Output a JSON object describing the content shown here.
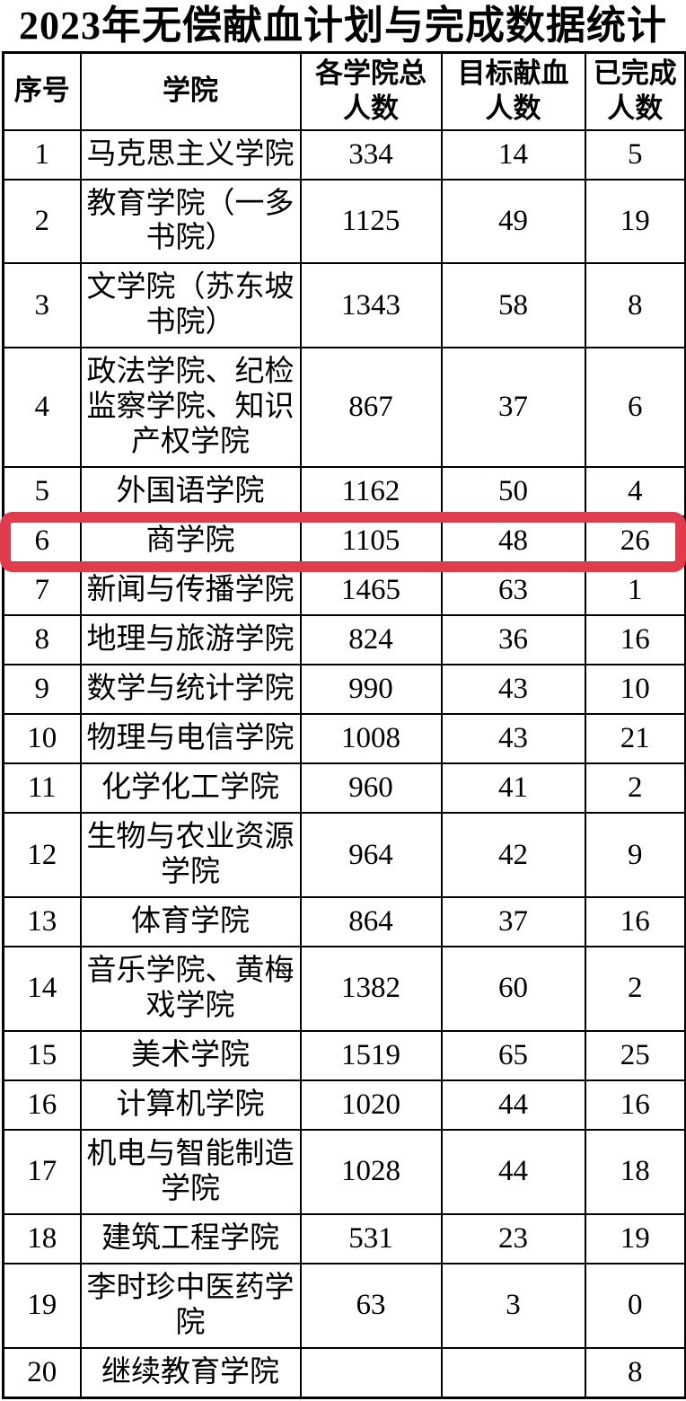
{
  "title": "2023年无偿献血计划与完成数据统计",
  "table": {
    "columns": [
      "序号",
      "学院",
      "各学院总人数",
      "目标献血人数",
      "已完成人数"
    ],
    "rows": [
      [
        "1",
        "马克思主义学院",
        "334",
        "14",
        "5"
      ],
      [
        "2",
        "教育学院（一多书院）",
        "1125",
        "49",
        "19"
      ],
      [
        "3",
        "文学院（苏东坡书院）",
        "1343",
        "58",
        "8"
      ],
      [
        "4",
        "政法学院、纪检监察学院、知识产权学院",
        "867",
        "37",
        "6"
      ],
      [
        "5",
        "外国语学院",
        "1162",
        "50",
        "4"
      ],
      [
        "6",
        "商学院",
        "1105",
        "48",
        "26"
      ],
      [
        "7",
        "新闻与传播学院",
        "1465",
        "63",
        "1"
      ],
      [
        "8",
        "地理与旅游学院",
        "824",
        "36",
        "16"
      ],
      [
        "9",
        "数学与统计学院",
        "990",
        "43",
        "10"
      ],
      [
        "10",
        "物理与电信学院",
        "1008",
        "43",
        "21"
      ],
      [
        "11",
        "化学化工学院",
        "960",
        "41",
        "2"
      ],
      [
        "12",
        "生物与农业资源学院",
        "964",
        "42",
        "9"
      ],
      [
        "13",
        "体育学院",
        "864",
        "37",
        "16"
      ],
      [
        "14",
        "音乐学院、黄梅戏学院",
        "1382",
        "60",
        "2"
      ],
      [
        "15",
        "美术学院",
        "1519",
        "65",
        "25"
      ],
      [
        "16",
        "计算机学院",
        "1020",
        "44",
        "16"
      ],
      [
        "17",
        "机电与智能制造学院",
        "1028",
        "44",
        "18"
      ],
      [
        "18",
        "建筑工程学院",
        "531",
        "23",
        "19"
      ],
      [
        "19",
        "李时珍中医药学院",
        "63",
        "3",
        "0"
      ],
      [
        "20",
        "继续教育学院",
        "",
        "",
        "8"
      ]
    ]
  },
  "highlight": {
    "row_index": 5,
    "row_no": "6",
    "color": "#e13b4e"
  }
}
